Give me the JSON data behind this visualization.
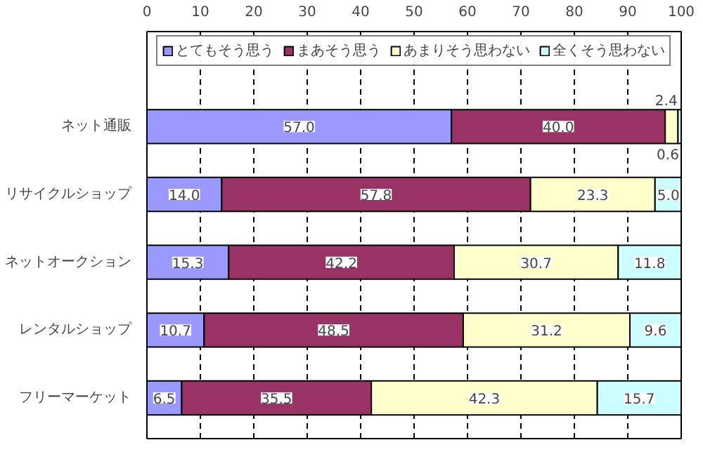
{
  "chart_data": {
    "type": "bar",
    "orientation": "horizontal",
    "stacked": true,
    "categories": [
      "ネット通販",
      "リサイクルショップ",
      "ネットオークション",
      "レンタルショップ",
      "フリーマーケット"
    ],
    "series": [
      {
        "name": "とてもそう思う",
        "color": "#9999ff",
        "values": [
          57.0,
          14.0,
          15.3,
          10.7,
          6.5
        ],
        "value_labels": [
          "57.0",
          "14.0",
          "15.3",
          "10.7",
          "6.5"
        ]
      },
      {
        "name": "まあそう思う",
        "color": "#993366",
        "values": [
          40.0,
          57.8,
          42.2,
          48.5,
          35.5
        ],
        "value_labels": [
          "40.0",
          "57.8",
          "42.2",
          "48.5",
          "35.5"
        ]
      },
      {
        "name": "あまりそう思わない",
        "color": "#ffffcc",
        "values": [
          2.4,
          23.3,
          30.7,
          31.2,
          42.3
        ],
        "value_labels": [
          "2.4",
          "23.3",
          "30.7",
          "31.2",
          "42.3"
        ]
      },
      {
        "name": "全くそう思わない",
        "color": "#ccffff",
        "values": [
          0.6,
          5.0,
          11.8,
          9.6,
          15.7
        ],
        "value_labels": [
          "0.6",
          "5.0",
          "11.8",
          "9.6",
          "15.7"
        ]
      }
    ],
    "xlim": [
      0,
      100
    ],
    "xticks": [
      0,
      10,
      20,
      30,
      40,
      50,
      60,
      70,
      80,
      90,
      100
    ],
    "grid": "x",
    "legend": "top"
  }
}
